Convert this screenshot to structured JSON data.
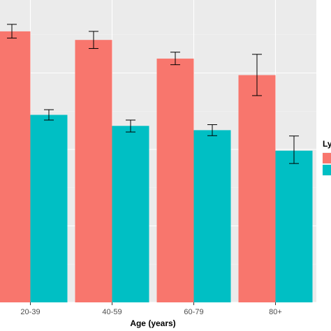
{
  "colors": {
    "panel_background": "#ebebeb",
    "grid_major": "#ffffff",
    "grid_minor": "#f5f5f5",
    "series_1": "#F8766D",
    "series_2": "#00BFC4",
    "error_bar": "#000000"
  },
  "chart_data": {
    "type": "bar",
    "title": "",
    "xlabel": "Age (years)",
    "ylabel": "",
    "categories": [
      "20-39",
      "40-59",
      "60-79",
      "80+"
    ],
    "ylim": [
      0,
      100
    ],
    "grid": true,
    "legend": {
      "title": "Ly",
      "placement": "right"
    },
    "series": [
      {
        "values": [
          88.6,
          85.8,
          79.7,
          74.3
        ],
        "error_low": [
          86.4,
          83.0,
          77.7,
          67.6
        ],
        "error_high": [
          90.9,
          88.6,
          81.8,
          81.1
        ]
      },
      {
        "values": [
          61.3,
          57.7,
          56.3,
          49.6
        ],
        "error_low": [
          59.6,
          55.7,
          54.5,
          45.4
        ],
        "error_high": [
          63.0,
          59.6,
          58.1,
          54.4
        ]
      }
    ]
  }
}
